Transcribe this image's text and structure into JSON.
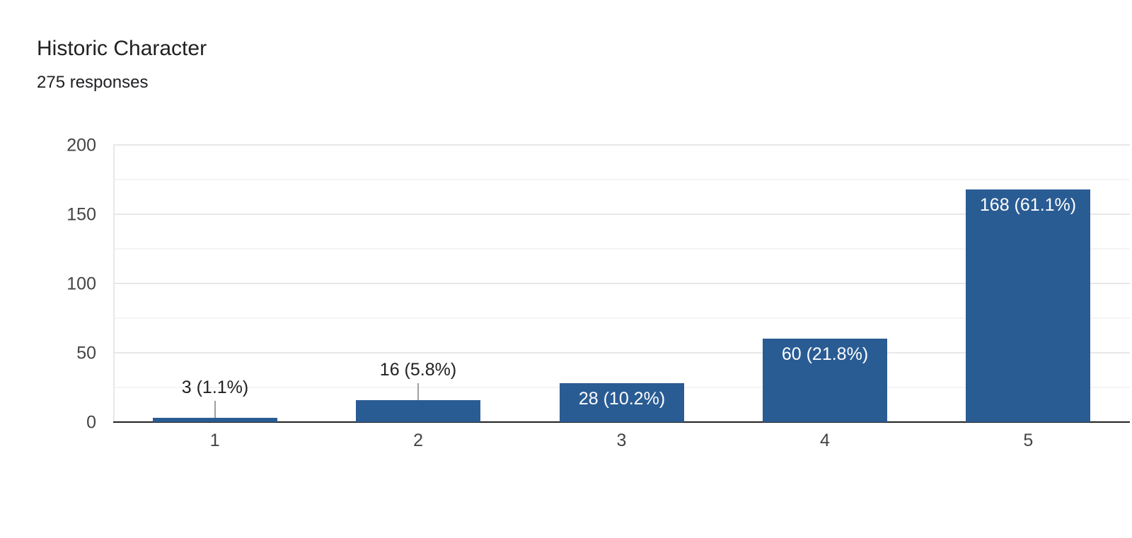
{
  "header": {
    "title": "Historic Character",
    "subtitle": "275 responses"
  },
  "chart_data": {
    "type": "bar",
    "title": "Historic Character",
    "subtitle": "275 responses",
    "categories": [
      "1",
      "2",
      "3",
      "4",
      "5"
    ],
    "values": [
      3,
      16,
      28,
      60,
      168
    ],
    "bar_labels": [
      "3 (1.1%)",
      "16 (5.8%)",
      "28 (10.2%)",
      "60 (21.8%)",
      "168 (61.1%)"
    ],
    "label_placement": [
      "above",
      "above",
      "inside",
      "inside",
      "inside"
    ],
    "xlabel": "",
    "ylabel": "",
    "ylim": [
      0,
      200
    ],
    "y_major_ticks": [
      0,
      50,
      100,
      150,
      200
    ],
    "y_minor_step": 25,
    "grid": "on",
    "legend": "none"
  },
  "colors": {
    "bar": "#2a5c94",
    "label_inside": "#ffffff",
    "label_outside": "#212121",
    "axis_text": "#444444",
    "grid_major": "#e8e8e8",
    "grid_minor": "#f4f4f4",
    "baseline": "#212121",
    "axis_line": "#e8e8e8",
    "stem": "#9e9e9e",
    "title": "#212121",
    "subtitle": "#202124",
    "background": "#ffffff"
  }
}
